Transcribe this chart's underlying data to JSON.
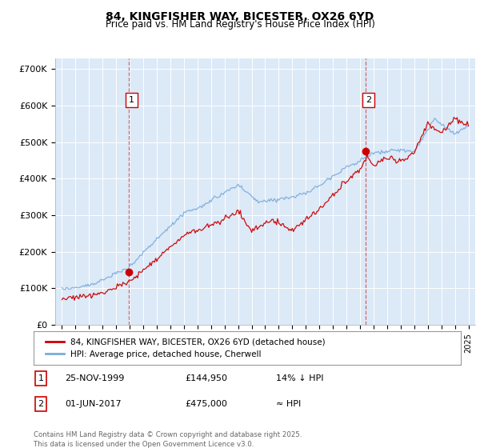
{
  "title": "84, KINGFISHER WAY, BICESTER, OX26 6YD",
  "subtitle": "Price paid vs. HM Land Registry's House Price Index (HPI)",
  "background_color": "#ffffff",
  "plot_bg_color": "#dce9f7",
  "ylabel_ticks": [
    "£0",
    "£100K",
    "£200K",
    "£300K",
    "£400K",
    "£500K",
    "£600K",
    "£700K"
  ],
  "ytick_values": [
    0,
    100000,
    200000,
    300000,
    400000,
    500000,
    600000,
    700000
  ],
  "ylim": [
    0,
    730000
  ],
  "xlim_start": 1994.5,
  "xlim_end": 2025.5,
  "sale1_date": 1999.92,
  "sale1_price": 144950,
  "sale1_label": "1",
  "sale2_date": 2017.42,
  "sale2_price": 475000,
  "sale2_label": "2",
  "red_line_color": "#cc0000",
  "blue_line_color": "#7aabdb",
  "legend_label_red": "84, KINGFISHER WAY, BICESTER, OX26 6YD (detached house)",
  "legend_label_blue": "HPI: Average price, detached house, Cherwell",
  "footer_text": "Contains HM Land Registry data © Crown copyright and database right 2025.\nThis data is licensed under the Open Government Licence v3.0.",
  "table_rows": [
    {
      "label": "1",
      "date": "25-NOV-1999",
      "price": "£144,950",
      "rel": "14% ↓ HPI"
    },
    {
      "label": "2",
      "date": "01-JUN-2017",
      "price": "£475,000",
      "rel": "≈ HPI"
    }
  ]
}
